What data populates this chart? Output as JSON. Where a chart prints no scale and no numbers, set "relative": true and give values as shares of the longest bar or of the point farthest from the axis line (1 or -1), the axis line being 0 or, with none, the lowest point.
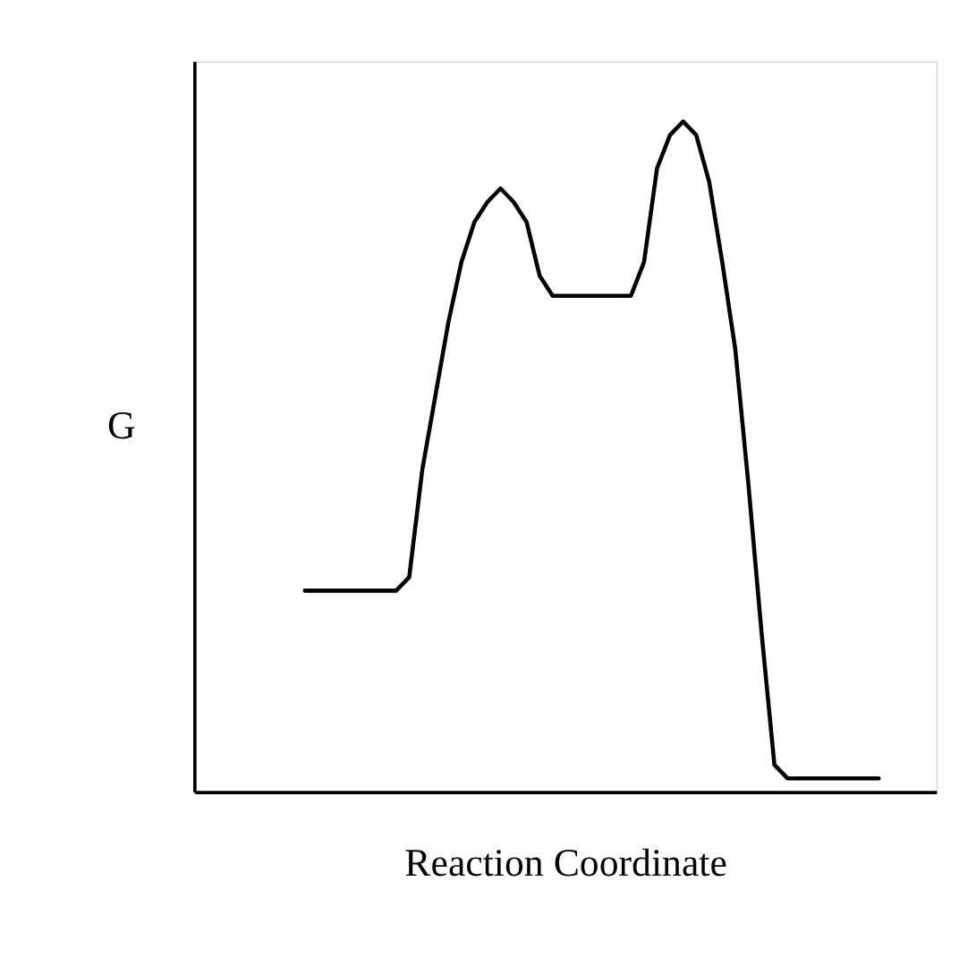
{
  "chart_data": {
    "type": "line",
    "relative": true,
    "xlabel": "Reaction Coordinate",
    "ylabel": "G",
    "tick_labels": false,
    "grid": false,
    "marker": "none",
    "line_style": "solid",
    "categories": [
      null,
      null,
      null,
      null,
      null,
      null,
      null,
      null,
      null,
      null,
      null,
      null,
      null,
      null,
      null,
      null,
      null,
      null,
      null,
      null,
      null,
      null,
      null,
      null,
      null,
      null,
      null,
      null,
      null,
      null,
      null,
      null,
      null,
      null,
      null,
      null,
      null,
      null,
      null,
      null,
      null,
      null,
      null,
      null,
      null
    ],
    "series": [
      {
        "color": "#000000",
        "values": [
          0.3,
          0.3,
          0.3,
          0.3,
          0.3,
          0.3,
          0.3,
          0.3,
          0.32,
          0.48,
          0.59,
          0.7,
          0.79,
          0.85,
          0.88,
          0.9,
          0.88,
          0.85,
          0.77,
          0.74,
          0.74,
          0.74,
          0.74,
          0.74,
          0.74,
          0.74,
          0.79,
          0.93,
          0.98,
          1.0,
          0.98,
          0.91,
          0.79,
          0.66,
          0.46,
          0.24,
          0.04,
          0.02,
          0.02,
          0.02,
          0.02,
          0.02,
          0.02,
          0.02,
          0.02
        ]
      }
    ]
  }
}
